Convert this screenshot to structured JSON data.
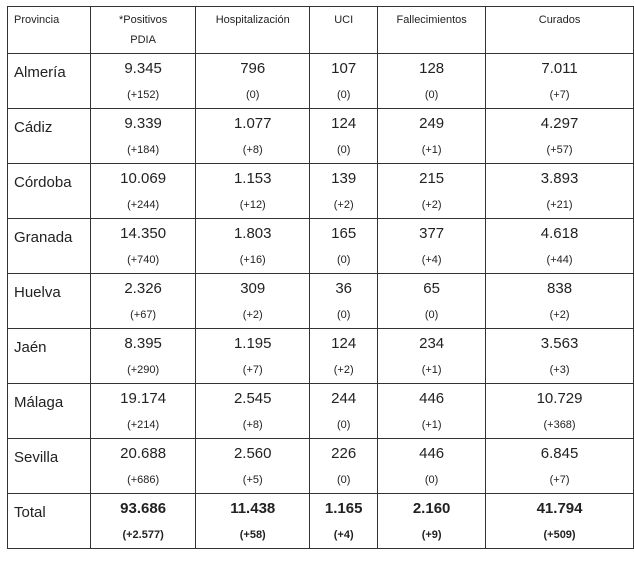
{
  "headers": [
    "Provincia",
    "*Positivos PDIA",
    "Hospitalización",
    "UCI",
    "Fallecimientos",
    "Curados"
  ],
  "rows": [
    {
      "provincia": "Almería",
      "cells": [
        [
          "9.345",
          "(+152)"
        ],
        [
          "796",
          "(0)"
        ],
        [
          "107",
          "(0)"
        ],
        [
          "128",
          "(0)"
        ],
        [
          "7.011",
          "(+7)"
        ]
      ]
    },
    {
      "provincia": "Cádiz",
      "cells": [
        [
          "9.339",
          "(+184)"
        ],
        [
          "1.077",
          "(+8)"
        ],
        [
          "124",
          "(0)"
        ],
        [
          "249",
          "(+1)"
        ],
        [
          "4.297",
          "(+57)"
        ]
      ]
    },
    {
      "provincia": "Córdoba",
      "cells": [
        [
          "10.069",
          "(+244)"
        ],
        [
          "1.153",
          "(+12)"
        ],
        [
          "139",
          "(+2)"
        ],
        [
          "215",
          "(+2)"
        ],
        [
          "3.893",
          "(+21)"
        ]
      ]
    },
    {
      "provincia": "Granada",
      "cells": [
        [
          "14.350",
          "(+740)"
        ],
        [
          "1.803",
          "(+16)"
        ],
        [
          "165",
          "(0)"
        ],
        [
          "377",
          "(+4)"
        ],
        [
          "4.618",
          "(+44)"
        ]
      ]
    },
    {
      "provincia": "Huelva",
      "cells": [
        [
          "2.326",
          "(+67)"
        ],
        [
          "309",
          "(+2)"
        ],
        [
          "36",
          "(0)"
        ],
        [
          "65",
          "(0)"
        ],
        [
          "838",
          "(+2)"
        ]
      ]
    },
    {
      "provincia": "Jaén",
      "cells": [
        [
          "8.395",
          "(+290)"
        ],
        [
          "1.195",
          "(+7)"
        ],
        [
          "124",
          "(+2)"
        ],
        [
          "234",
          "(+1)"
        ],
        [
          "3.563",
          "(+3)"
        ]
      ]
    },
    {
      "provincia": "Málaga",
      "cells": [
        [
          "19.174",
          "(+214)"
        ],
        [
          "2.545",
          "(+8)"
        ],
        [
          "244",
          "(0)"
        ],
        [
          "446",
          "(+1)"
        ],
        [
          "10.729",
          "(+368)"
        ]
      ]
    },
    {
      "provincia": "Sevilla",
      "cells": [
        [
          "20.688",
          "(+686)"
        ],
        [
          "2.560",
          "(+5)"
        ],
        [
          "226",
          "(0)"
        ],
        [
          "446",
          "(0)"
        ],
        [
          "6.845",
          "(+7)"
        ]
      ]
    },
    {
      "provincia": "Total",
      "cells": [
        [
          "93.686",
          "(+2.577)"
        ],
        [
          "11.438",
          "(+58)"
        ],
        [
          "1.165",
          "(+4)"
        ],
        [
          "2.160",
          "(+9)"
        ],
        [
          "41.794",
          "(+509)"
        ]
      ]
    }
  ]
}
